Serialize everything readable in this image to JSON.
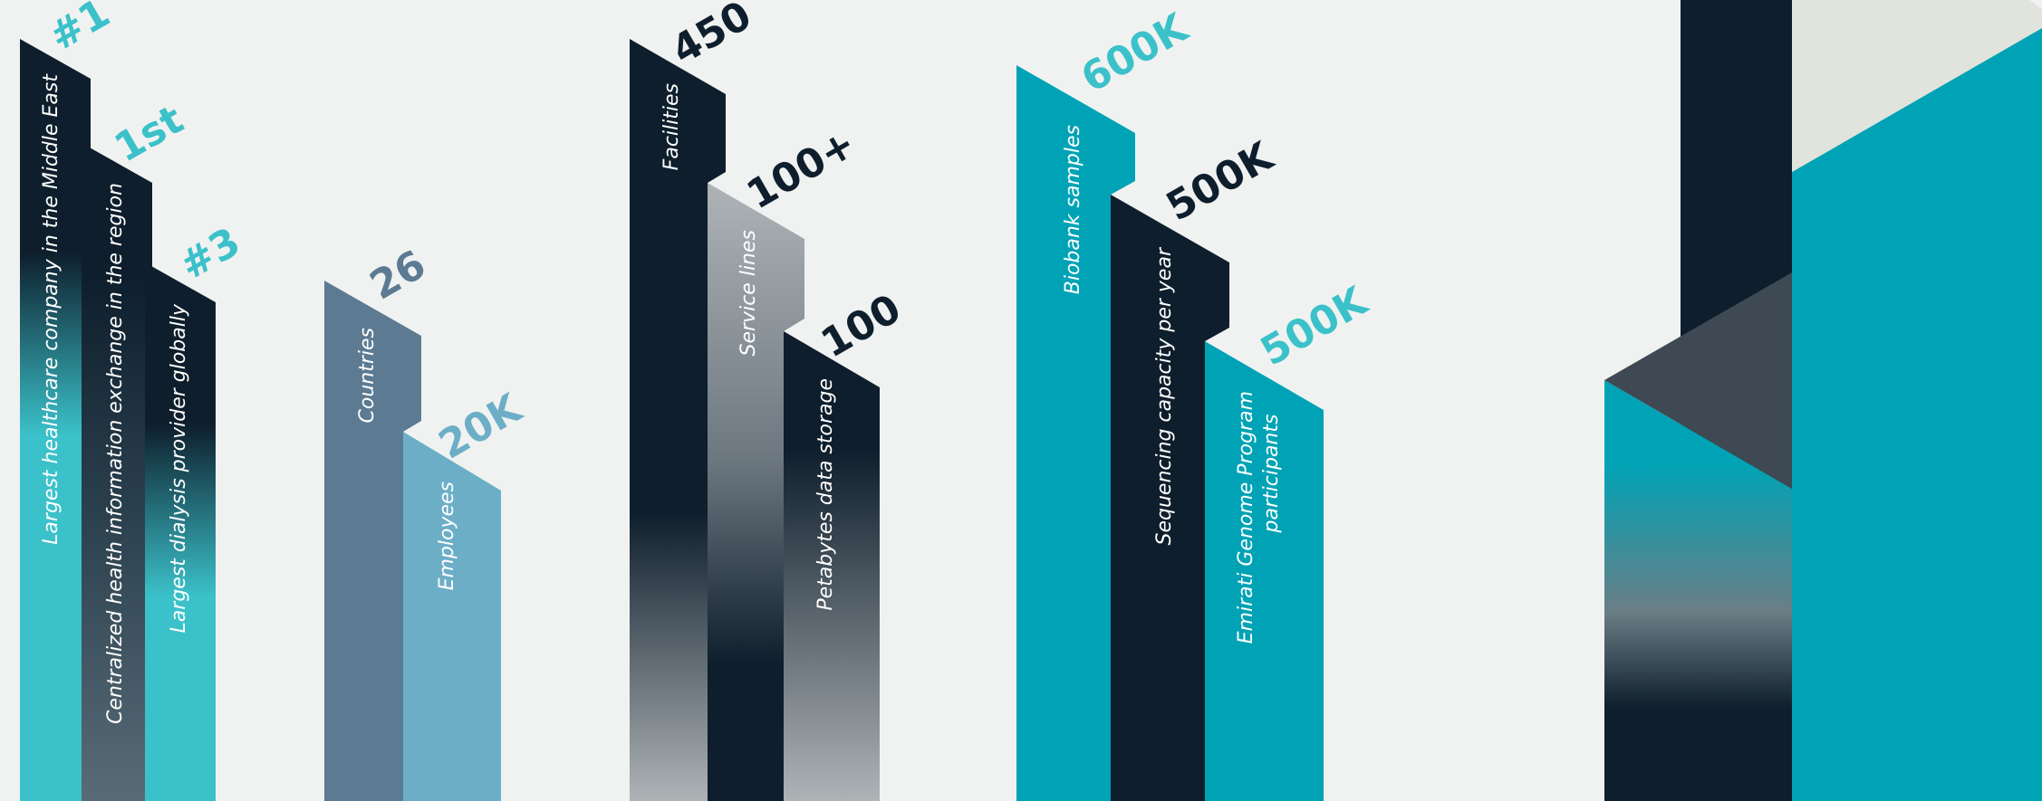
{
  "colors": {
    "background": "#f0f2f1",
    "navy": "#0e1e2c",
    "teal": "#00a3b5",
    "teal_light": "#3bc1c9",
    "slate": "#5c7b93",
    "steel_blue": "#6daec7",
    "silver": "#aeb3b6",
    "charcoal": "#3e4953",
    "pale_grey": "#e1e3dd"
  },
  "groups": [
    {
      "stats": [
        {
          "value": "#1",
          "label": "Largest healthcare company in the Middle East"
        },
        {
          "value": "1st",
          "label": "Centralized health information exchange in the region"
        },
        {
          "value": "#3",
          "label": "Largest dialysis provider globally"
        }
      ]
    },
    {
      "stats": [
        {
          "value": "26",
          "label": "Countries"
        },
        {
          "value": "20K",
          "label": "Employees"
        }
      ]
    },
    {
      "stats": [
        {
          "value": "450",
          "label": "Facilities"
        },
        {
          "value": "100+",
          "label": "Service lines"
        },
        {
          "value": "100",
          "label": "Petabytes data storage"
        }
      ]
    },
    {
      "stats": [
        {
          "value": "600K",
          "label": "Biobank samples"
        },
        {
          "value": "500K",
          "label": "Sequencing capacity per year"
        },
        {
          "value": "500K",
          "label_lines": [
            "Emirati Genome Program",
            "participants"
          ]
        }
      ]
    }
  ]
}
